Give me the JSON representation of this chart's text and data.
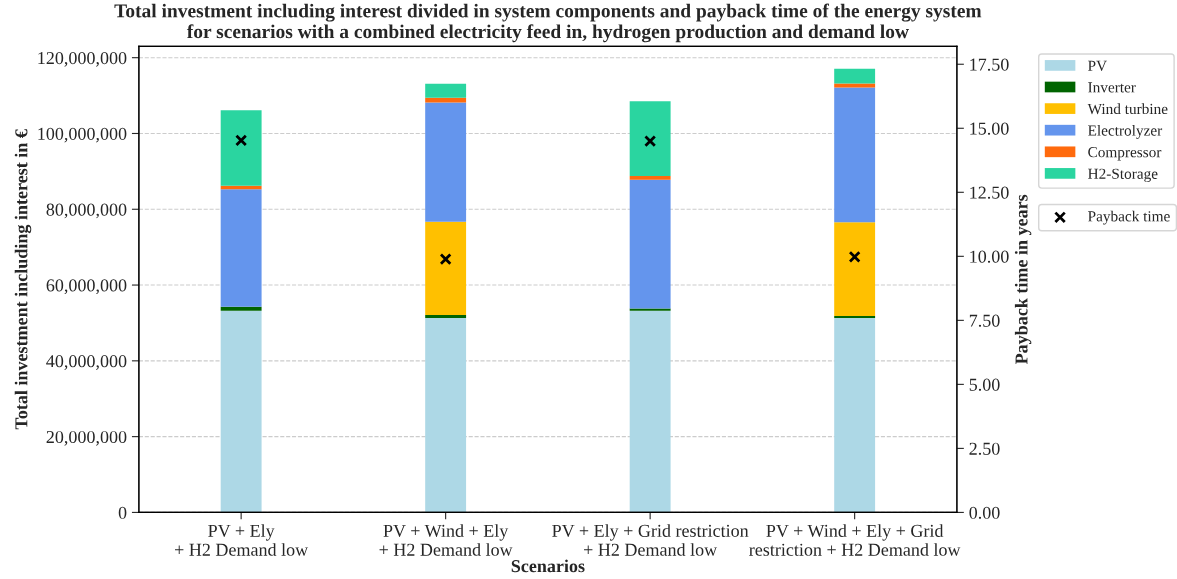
{
  "chart_data": {
    "type": "bar",
    "stacked": true,
    "title": "Total investment including interest divided in system components and payback time of the energy system\nfor scenarios with a combined electricity feed in, hydrogen production and demand low",
    "xlabel": "Scenarios",
    "ylabel": "Total investment including interest in €",
    "y2label": "Payback time in years",
    "categories": [
      "PV + Ely\n+ H2 Demand low",
      "PV + Wind + Ely\n+ H2 Demand low",
      "PV + Ely + Grid restriction\n+ H2 Demand low",
      "PV + Wind + Ely + Grid\nrestriction + H2 Demand low"
    ],
    "series": [
      {
        "name": "PV",
        "color": "#add8e6",
        "values": [
          53200000,
          51300000,
          53200000,
          51300000
        ]
      },
      {
        "name": "Inverter",
        "color": "#006400",
        "values": [
          1100000,
          800000,
          600000,
          500000
        ]
      },
      {
        "name": "Wind turbine",
        "color": "#ffc000",
        "values": [
          0,
          24600000,
          0,
          24800000
        ]
      },
      {
        "name": "Electrolyzer",
        "color": "#6495ed",
        "values": [
          31000000,
          31500000,
          34000000,
          35500000
        ]
      },
      {
        "name": "Compressor",
        "color": "#ff6a0d",
        "values": [
          900000,
          1200000,
          1000000,
          1100000
        ]
      },
      {
        "name": "H2-Storage",
        "color": "#2ad5a0",
        "values": [
          19900000,
          3700000,
          19700000,
          3900000
        ]
      },
      {
        "name": "Payback time",
        "type": "scatter",
        "axis": "y2",
        "marker": "cross",
        "color": "#000000",
        "values": [
          14.53,
          9.89,
          14.5,
          9.98
        ]
      }
    ],
    "ylim": [
      0,
      123000000
    ],
    "yticks": [
      0,
      {
        "value": 20000000,
        "label": "20,000,000"
      },
      {
        "value": 40000000,
        "label": "40,000,000"
      },
      {
        "value": 60000000,
        "label": "60,000,000"
      },
      {
        "value": 80000000,
        "label": "80,000,000"
      },
      {
        "value": 100000000,
        "label": "100,000,000"
      },
      {
        "value": 120000000,
        "label": "120,000,000"
      }
    ],
    "y2lim": [
      0,
      18.2
    ],
    "y2ticks": [
      {
        "value": 0,
        "label": "0.00"
      },
      {
        "value": 2.5,
        "label": "2.50"
      },
      {
        "value": 5,
        "label": "5.00"
      },
      {
        "value": 7.5,
        "label": "7.50"
      },
      {
        "value": 10,
        "label": "10.00"
      },
      {
        "value": 12.5,
        "label": "12.50"
      },
      {
        "value": 15,
        "label": "15.00"
      },
      {
        "value": 17.5,
        "label": "17.50"
      }
    ],
    "grid": "y",
    "legend": "top right"
  }
}
